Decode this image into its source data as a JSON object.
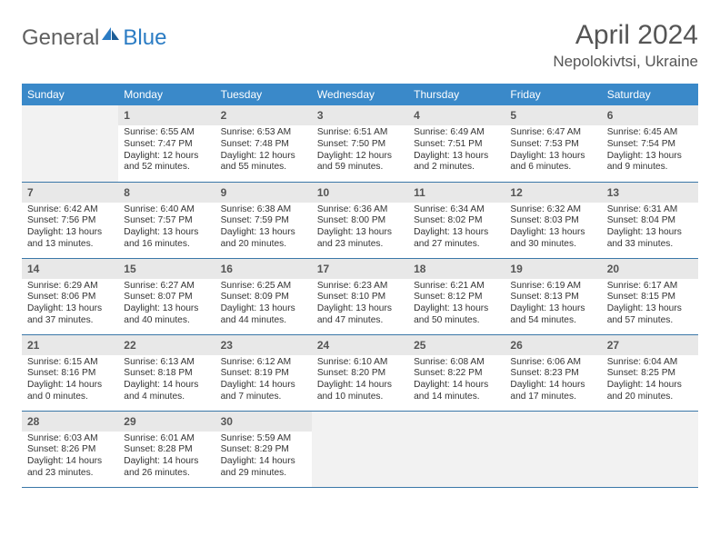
{
  "header": {
    "logo_text_a": "General",
    "logo_text_b": "Blue",
    "title": "April 2024",
    "location": "Nepolokivtsi, Ukraine"
  },
  "calendar": {
    "day_names": [
      "Sunday",
      "Monday",
      "Tuesday",
      "Wednesday",
      "Thursday",
      "Friday",
      "Saturday"
    ],
    "header_bg": "#3a89c9",
    "header_fg": "#ffffff",
    "daynum_bg": "#e8e8e8",
    "empty_bg": "#f2f2f2",
    "border_color": "#3a77a8",
    "weeks": [
      [
        null,
        {
          "n": "1",
          "sr": "Sunrise: 6:55 AM",
          "ss": "Sunset: 7:47 PM",
          "dl": "Daylight: 12 hours and 52 minutes."
        },
        {
          "n": "2",
          "sr": "Sunrise: 6:53 AM",
          "ss": "Sunset: 7:48 PM",
          "dl": "Daylight: 12 hours and 55 minutes."
        },
        {
          "n": "3",
          "sr": "Sunrise: 6:51 AM",
          "ss": "Sunset: 7:50 PM",
          "dl": "Daylight: 12 hours and 59 minutes."
        },
        {
          "n": "4",
          "sr": "Sunrise: 6:49 AM",
          "ss": "Sunset: 7:51 PM",
          "dl": "Daylight: 13 hours and 2 minutes."
        },
        {
          "n": "5",
          "sr": "Sunrise: 6:47 AM",
          "ss": "Sunset: 7:53 PM",
          "dl": "Daylight: 13 hours and 6 minutes."
        },
        {
          "n": "6",
          "sr": "Sunrise: 6:45 AM",
          "ss": "Sunset: 7:54 PM",
          "dl": "Daylight: 13 hours and 9 minutes."
        }
      ],
      [
        {
          "n": "7",
          "sr": "Sunrise: 6:42 AM",
          "ss": "Sunset: 7:56 PM",
          "dl": "Daylight: 13 hours and 13 minutes."
        },
        {
          "n": "8",
          "sr": "Sunrise: 6:40 AM",
          "ss": "Sunset: 7:57 PM",
          "dl": "Daylight: 13 hours and 16 minutes."
        },
        {
          "n": "9",
          "sr": "Sunrise: 6:38 AM",
          "ss": "Sunset: 7:59 PM",
          "dl": "Daylight: 13 hours and 20 minutes."
        },
        {
          "n": "10",
          "sr": "Sunrise: 6:36 AM",
          "ss": "Sunset: 8:00 PM",
          "dl": "Daylight: 13 hours and 23 minutes."
        },
        {
          "n": "11",
          "sr": "Sunrise: 6:34 AM",
          "ss": "Sunset: 8:02 PM",
          "dl": "Daylight: 13 hours and 27 minutes."
        },
        {
          "n": "12",
          "sr": "Sunrise: 6:32 AM",
          "ss": "Sunset: 8:03 PM",
          "dl": "Daylight: 13 hours and 30 minutes."
        },
        {
          "n": "13",
          "sr": "Sunrise: 6:31 AM",
          "ss": "Sunset: 8:04 PM",
          "dl": "Daylight: 13 hours and 33 minutes."
        }
      ],
      [
        {
          "n": "14",
          "sr": "Sunrise: 6:29 AM",
          "ss": "Sunset: 8:06 PM",
          "dl": "Daylight: 13 hours and 37 minutes."
        },
        {
          "n": "15",
          "sr": "Sunrise: 6:27 AM",
          "ss": "Sunset: 8:07 PM",
          "dl": "Daylight: 13 hours and 40 minutes."
        },
        {
          "n": "16",
          "sr": "Sunrise: 6:25 AM",
          "ss": "Sunset: 8:09 PM",
          "dl": "Daylight: 13 hours and 44 minutes."
        },
        {
          "n": "17",
          "sr": "Sunrise: 6:23 AM",
          "ss": "Sunset: 8:10 PM",
          "dl": "Daylight: 13 hours and 47 minutes."
        },
        {
          "n": "18",
          "sr": "Sunrise: 6:21 AM",
          "ss": "Sunset: 8:12 PM",
          "dl": "Daylight: 13 hours and 50 minutes."
        },
        {
          "n": "19",
          "sr": "Sunrise: 6:19 AM",
          "ss": "Sunset: 8:13 PM",
          "dl": "Daylight: 13 hours and 54 minutes."
        },
        {
          "n": "20",
          "sr": "Sunrise: 6:17 AM",
          "ss": "Sunset: 8:15 PM",
          "dl": "Daylight: 13 hours and 57 minutes."
        }
      ],
      [
        {
          "n": "21",
          "sr": "Sunrise: 6:15 AM",
          "ss": "Sunset: 8:16 PM",
          "dl": "Daylight: 14 hours and 0 minutes."
        },
        {
          "n": "22",
          "sr": "Sunrise: 6:13 AM",
          "ss": "Sunset: 8:18 PM",
          "dl": "Daylight: 14 hours and 4 minutes."
        },
        {
          "n": "23",
          "sr": "Sunrise: 6:12 AM",
          "ss": "Sunset: 8:19 PM",
          "dl": "Daylight: 14 hours and 7 minutes."
        },
        {
          "n": "24",
          "sr": "Sunrise: 6:10 AM",
          "ss": "Sunset: 8:20 PM",
          "dl": "Daylight: 14 hours and 10 minutes."
        },
        {
          "n": "25",
          "sr": "Sunrise: 6:08 AM",
          "ss": "Sunset: 8:22 PM",
          "dl": "Daylight: 14 hours and 14 minutes."
        },
        {
          "n": "26",
          "sr": "Sunrise: 6:06 AM",
          "ss": "Sunset: 8:23 PM",
          "dl": "Daylight: 14 hours and 17 minutes."
        },
        {
          "n": "27",
          "sr": "Sunrise: 6:04 AM",
          "ss": "Sunset: 8:25 PM",
          "dl": "Daylight: 14 hours and 20 minutes."
        }
      ],
      [
        {
          "n": "28",
          "sr": "Sunrise: 6:03 AM",
          "ss": "Sunset: 8:26 PM",
          "dl": "Daylight: 14 hours and 23 minutes."
        },
        {
          "n": "29",
          "sr": "Sunrise: 6:01 AM",
          "ss": "Sunset: 8:28 PM",
          "dl": "Daylight: 14 hours and 26 minutes."
        },
        {
          "n": "30",
          "sr": "Sunrise: 5:59 AM",
          "ss": "Sunset: 8:29 PM",
          "dl": "Daylight: 14 hours and 29 minutes."
        },
        null,
        null,
        null,
        null
      ]
    ]
  }
}
